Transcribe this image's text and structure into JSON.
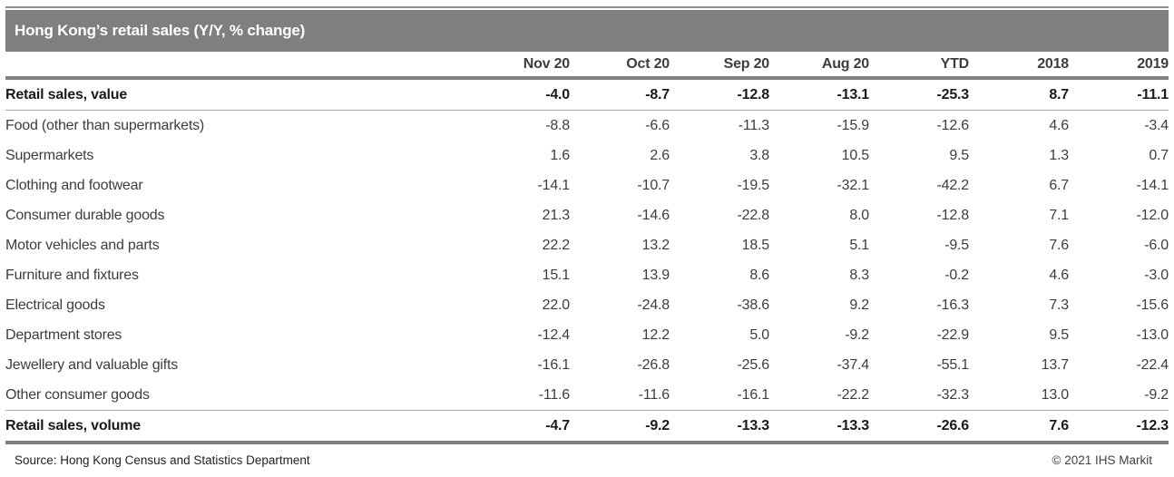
{
  "title_bar": {
    "title": "Hong Kong’s retail sales (Y/Y, % change)"
  },
  "chart_data": {
    "type": "table",
    "title": "Hong Kong’s retail sales (Y/Y, % change)",
    "columns": [
      "Nov 20",
      "Oct 20",
      "Sep 20",
      "Aug 20",
      "YTD",
      "2018",
      "2019"
    ],
    "rows": [
      {
        "label": "Retail sales, value",
        "indent": 0,
        "bold": true,
        "values": [
          "-4.0",
          "-8.7",
          "-12.8",
          "-13.1",
          "-25.3",
          "8.7",
          "-11.1"
        ]
      },
      {
        "label": "Food (other than supermarkets)",
        "indent": 1,
        "bold": false,
        "values": [
          "-8.8",
          "-6.6",
          "-11.3",
          "-15.9",
          "-12.6",
          "4.6",
          "-3.4"
        ]
      },
      {
        "label": "Supermarkets",
        "indent": 1,
        "bold": false,
        "values": [
          "1.6",
          "2.6",
          "3.8",
          "10.5",
          "9.5",
          "1.3",
          "0.7"
        ]
      },
      {
        "label": "Clothing and footwear",
        "indent": 1,
        "bold": false,
        "values": [
          "-14.1",
          "-10.7",
          "-19.5",
          "-32.1",
          "-42.2",
          "6.7",
          "-14.1"
        ]
      },
      {
        "label": "Consumer durable goods",
        "indent": 1,
        "bold": false,
        "values": [
          "21.3",
          "-14.6",
          "-22.8",
          "8.0",
          "-12.8",
          "7.1",
          "-12.0"
        ]
      },
      {
        "label": "Motor vehicles and parts",
        "indent": 2,
        "bold": false,
        "values": [
          "22.2",
          "13.2",
          "18.5",
          "5.1",
          "-9.5",
          "7.6",
          "-6.0"
        ]
      },
      {
        "label": "Furniture and fixtures",
        "indent": 2,
        "bold": false,
        "values": [
          "15.1",
          "13.9",
          "8.6",
          "8.3",
          "-0.2",
          "4.6",
          "-3.0"
        ]
      },
      {
        "label": "Electrical goods",
        "indent": 2,
        "bold": false,
        "values": [
          "22.0",
          "-24.8",
          "-38.6",
          "9.2",
          "-16.3",
          "7.3",
          "-15.6"
        ]
      },
      {
        "label": "Department stores",
        "indent": 1,
        "bold": false,
        "values": [
          "-12.4",
          "12.2",
          "5.0",
          "-9.2",
          "-22.9",
          "9.5",
          "-13.0"
        ]
      },
      {
        "label": "Jewellery and valuable gifts",
        "indent": 1,
        "bold": false,
        "values": [
          "-16.1",
          "-26.8",
          "-25.6",
          "-37.4",
          "-55.1",
          "13.7",
          "-22.4"
        ]
      },
      {
        "label": "Other consumer goods",
        "indent": 1,
        "bold": false,
        "values": [
          "-11.6",
          "-11.6",
          "-16.1",
          "-22.2",
          "-32.3",
          "13.0",
          "-9.2"
        ]
      },
      {
        "label": "Retail sales, volume",
        "indent": 0,
        "bold": true,
        "values": [
          "-4.7",
          "-9.2",
          "-13.3",
          "-13.3",
          "-26.6",
          "7.6",
          "-12.3"
        ]
      }
    ]
  },
  "footer": {
    "source": "Source: Hong Kong Census and Statistics Department",
    "copyright": "© 2021 IHS Markit"
  },
  "colors": {
    "title_bar_bg": "#7f7f7f",
    "title_text": "#ffffff",
    "rule_thick": "#808080",
    "rule_thin": "#a8a8a8",
    "text_bold": "#1a1a1a",
    "text_body": "#3d3d3d"
  }
}
